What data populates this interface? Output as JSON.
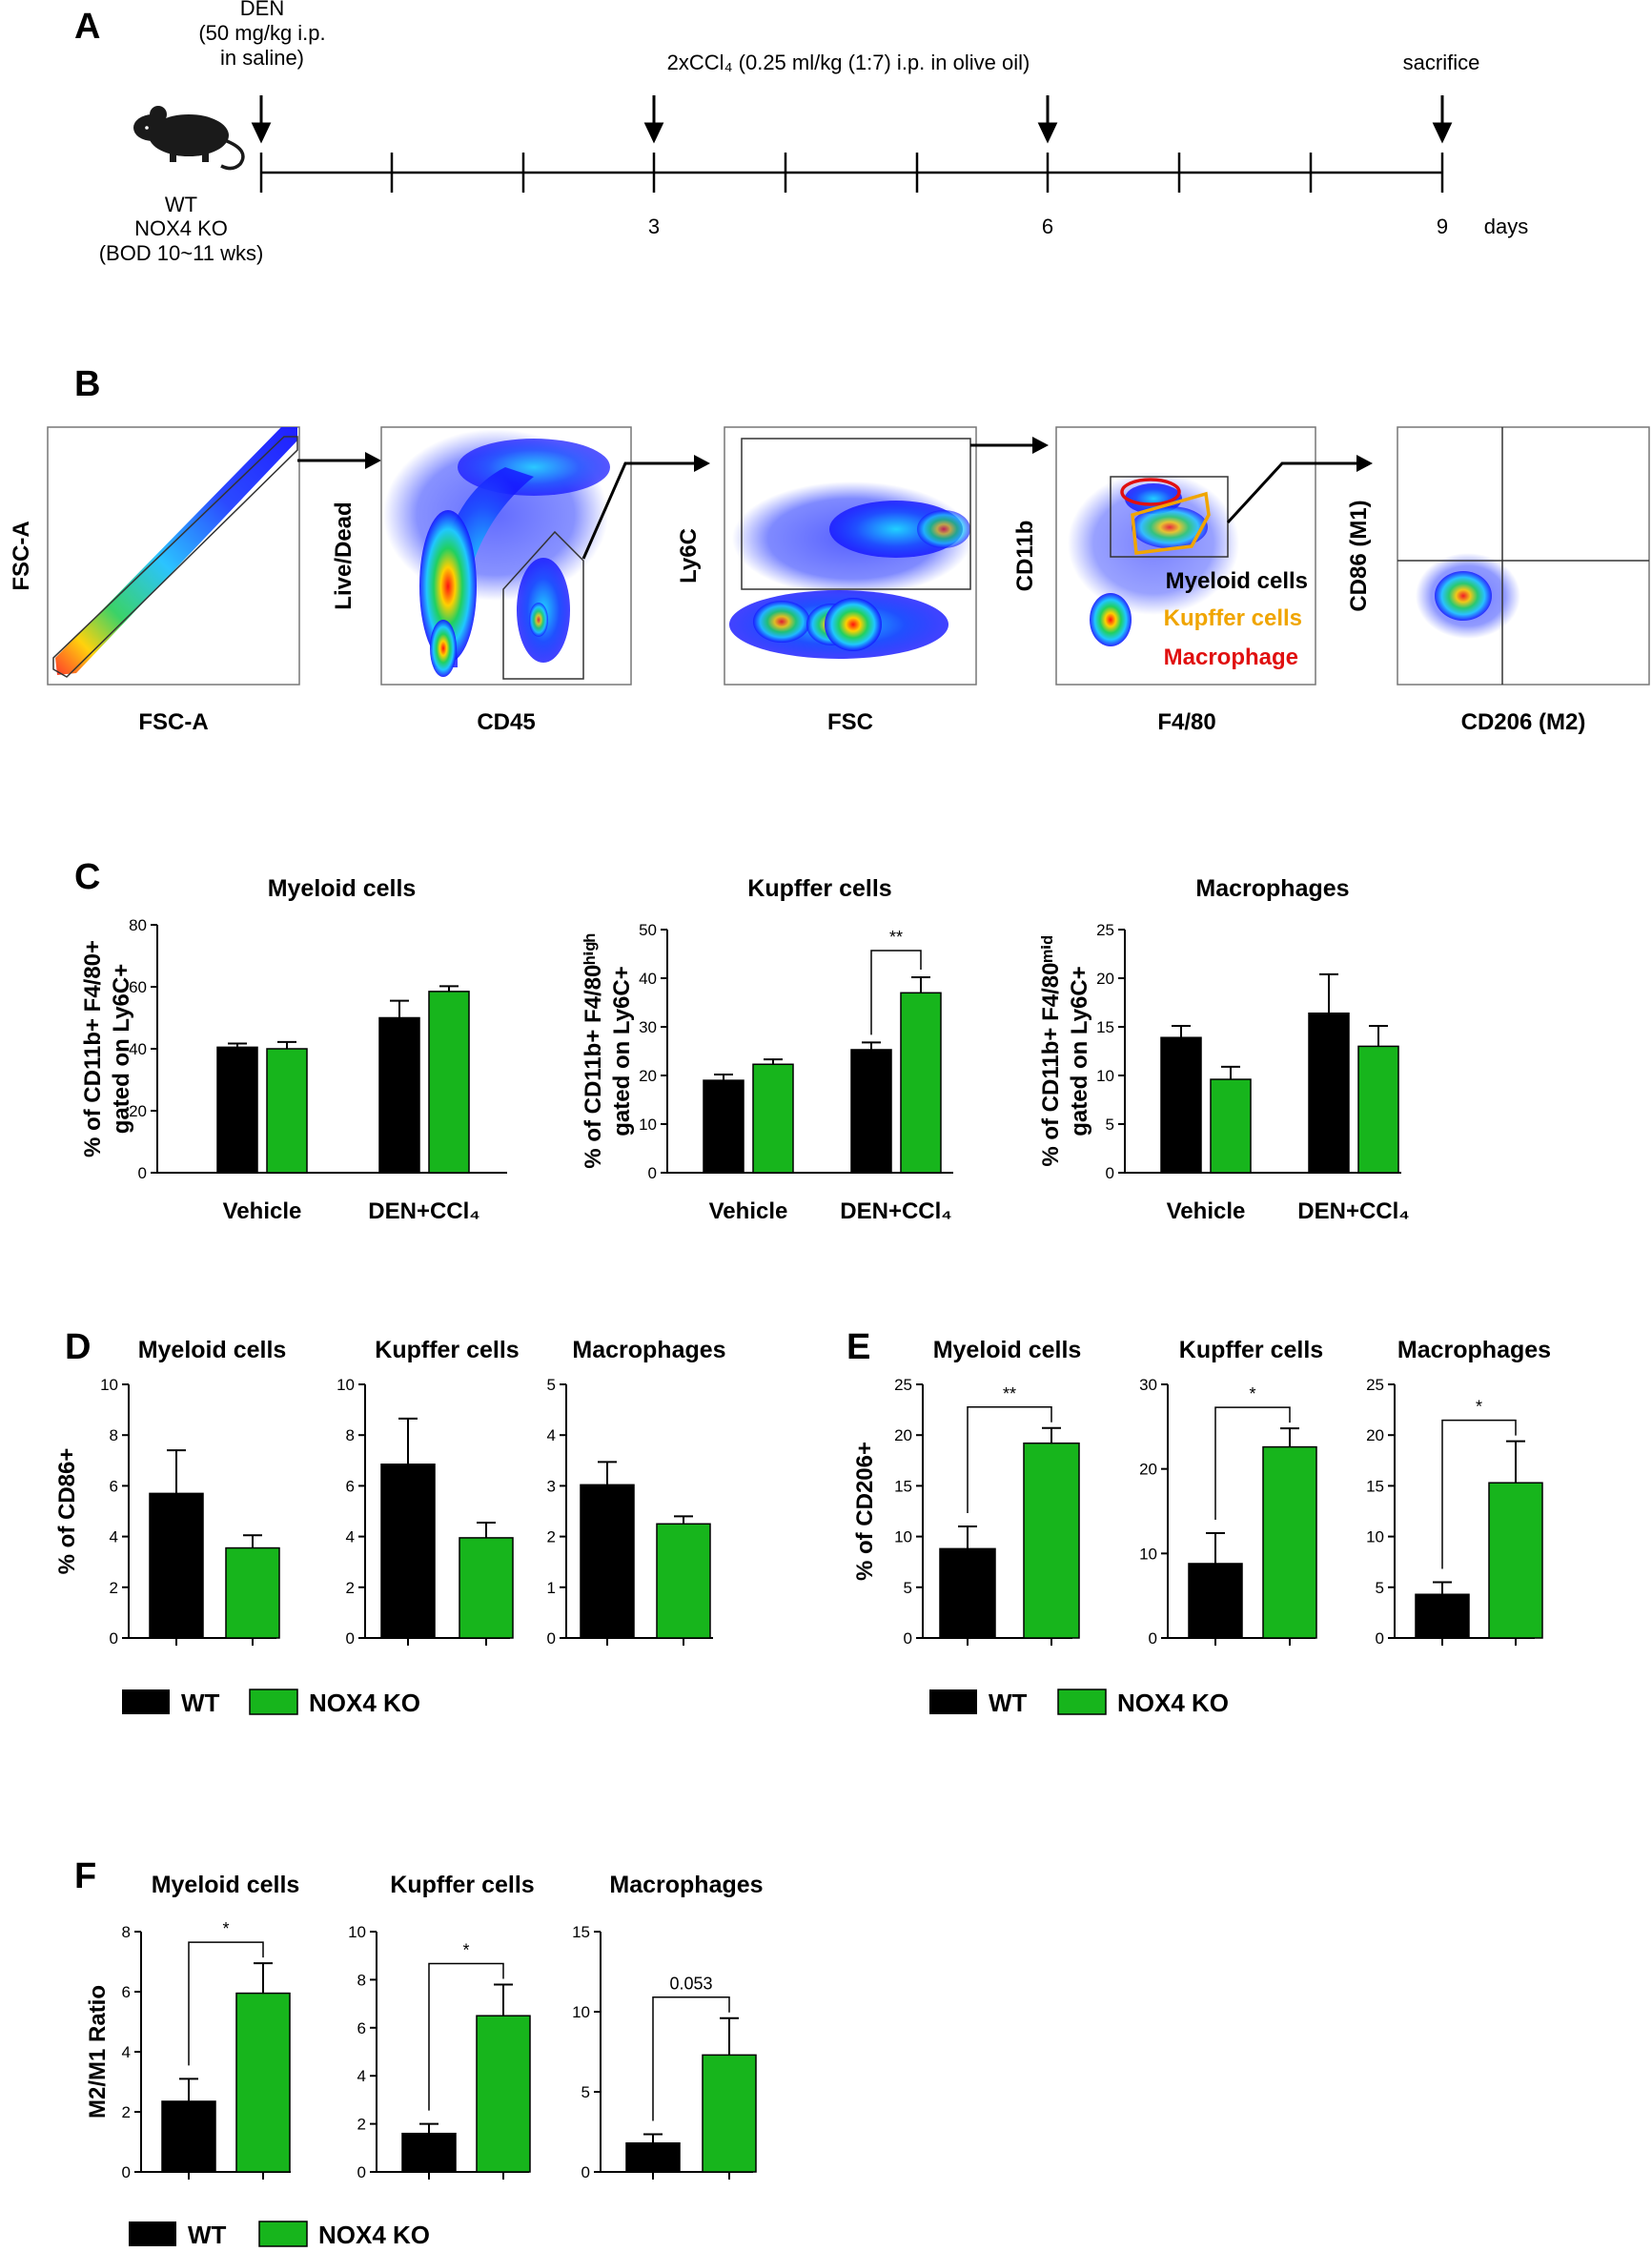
{
  "panels": {
    "A": "A",
    "B": "B",
    "C": "C",
    "D": "D",
    "E": "E",
    "F": "F"
  },
  "colors": {
    "wt": "#000000",
    "ko": "#17b51c",
    "kupffer": "#f0a500",
    "macrophage": "#e01010"
  },
  "timeline": {
    "den": [
      "DEN",
      "(50 mg/kg i.p.",
      "in saline)"
    ],
    "ccl4": "2xCCl₄ (0.25 ml/kg (1:7) i.p. in olive oil)",
    "sacrifice": "sacrifice",
    "mouse_labels": [
      "WT",
      "NOX4  KO",
      "(BOD 10~11 wks)"
    ],
    "day_ticks": [
      "3",
      "6",
      "9"
    ],
    "unit": "days"
  },
  "flow": {
    "plots": [
      {
        "y": "FSC-A",
        "x": "FSC-A"
      },
      {
        "y": "Live/Dead",
        "x": "CD45"
      },
      {
        "y": "Ly6C",
        "x": "FSC"
      },
      {
        "y": "CD11b",
        "x": "F4/80"
      },
      {
        "y": "CD86 (M1)",
        "x": "CD206 (M2)"
      }
    ],
    "gates": [
      "Myeloid cells",
      "Kupffer cells",
      "Macrophage"
    ]
  },
  "legend": {
    "wt": "WT",
    "ko": "NOX4 KO"
  },
  "chart_data": [
    {
      "id": "C1",
      "type": "bar",
      "title": "Myeloid cells",
      "ylabel": [
        "% of CD11b+ F4/80+",
        "gated on Ly6C+"
      ],
      "categories": [
        "Vehicle",
        "DEN+CCl₄"
      ],
      "ylim": [
        0,
        80
      ],
      "yticks": [
        "0",
        "20",
        "40",
        "60",
        "80"
      ],
      "series": [
        {
          "name": "WT",
          "values": [
            40.5,
            50
          ],
          "errors": [
            1.2,
            5.5
          ]
        },
        {
          "name": "NOX4 KO",
          "values": [
            40,
            58.5
          ],
          "errors": [
            2.2,
            1.7
          ]
        }
      ],
      "annotations": []
    },
    {
      "id": "C2",
      "type": "bar",
      "title": "Kupffer cells",
      "ylabel": [
        "% of CD11b+ F4/80ʰⁱᵍʰ",
        "gated on Ly6C+"
      ],
      "categories": [
        "Vehicle",
        "DEN+CCl₄"
      ],
      "ylim": [
        0,
        50
      ],
      "yticks": [
        "0",
        "10",
        "20",
        "30",
        "40",
        "50"
      ],
      "series": [
        {
          "name": "WT",
          "values": [
            19,
            25.3
          ],
          "errors": [
            1.2,
            1.5
          ]
        },
        {
          "name": "NOX4 KO",
          "values": [
            22.3,
            37
          ],
          "errors": [
            1.0,
            3.2
          ]
        }
      ],
      "annotations": [
        {
          "text": "**",
          "from": [
            1,
            0
          ],
          "to": [
            1,
            1
          ]
        }
      ]
    },
    {
      "id": "C3",
      "type": "bar",
      "title": "Macrophages",
      "ylabel": [
        "% of CD11b+ F4/80ᵐⁱᵈ",
        "gated on Ly6C+"
      ],
      "categories": [
        "Vehicle",
        "DEN+CCl₄"
      ],
      "ylim": [
        0,
        25
      ],
      "yticks": [
        "0",
        "5",
        "10",
        "15",
        "20",
        "25"
      ],
      "series": [
        {
          "name": "WT",
          "values": [
            13.9,
            16.4
          ],
          "errors": [
            1.2,
            4.0
          ]
        },
        {
          "name": "NOX4 KO",
          "values": [
            9.6,
            13
          ],
          "errors": [
            1.3,
            2.1
          ]
        }
      ],
      "annotations": []
    },
    {
      "id": "D1",
      "type": "bar",
      "title": "Myeloid cells",
      "ylabel": [
        "% of CD86+"
      ],
      "categories": [
        "WT",
        "NOX4 KO"
      ],
      "ylim": [
        0,
        10
      ],
      "yticks": [
        "0",
        "2",
        "4",
        "6",
        "8",
        "10"
      ],
      "values": [
        5.7,
        3.55
      ],
      "errors": [
        1.7,
        0.5
      ],
      "annotations": []
    },
    {
      "id": "D2",
      "type": "bar",
      "title": "Kupffer cells",
      "ylabel": [],
      "categories": [
        "WT",
        "NOX4 KO"
      ],
      "ylim": [
        0,
        10
      ],
      "yticks": [
        "0",
        "2",
        "4",
        "6",
        "8",
        "10"
      ],
      "values": [
        6.85,
        3.95
      ],
      "errors": [
        1.8,
        0.6
      ],
      "annotations": []
    },
    {
      "id": "D3",
      "type": "bar",
      "title": "Macrophages",
      "ylabel": [],
      "categories": [
        "WT",
        "NOX4 KO"
      ],
      "ylim": [
        0,
        5
      ],
      "yticks": [
        "0",
        "1",
        "2",
        "3",
        "4",
        "5"
      ],
      "values": [
        3.02,
        2.25
      ],
      "errors": [
        0.45,
        0.15
      ],
      "annotations": []
    },
    {
      "id": "E1",
      "type": "bar",
      "title": "Myeloid cells",
      "ylabel": [
        "% of CD206+"
      ],
      "categories": [
        "WT",
        "NOX4 KO"
      ],
      "ylim": [
        0,
        25
      ],
      "yticks": [
        "0",
        "5",
        "10",
        "15",
        "20",
        "25"
      ],
      "values": [
        8.8,
        19.2
      ],
      "errors": [
        2.2,
        1.5
      ],
      "annotations": [
        {
          "text": "**"
        }
      ]
    },
    {
      "id": "E2",
      "type": "bar",
      "title": "Kupffer cells",
      "ylabel": [],
      "categories": [
        "WT",
        "NOX4 KO"
      ],
      "ylim": [
        0,
        30
      ],
      "yticks": [
        "0",
        "10",
        "20",
        "30"
      ],
      "values": [
        8.8,
        22.6
      ],
      "errors": [
        3.6,
        2.2
      ],
      "annotations": [
        {
          "text": "*"
        }
      ]
    },
    {
      "id": "E3",
      "type": "bar",
      "title": "Macrophages",
      "ylabel": [],
      "categories": [
        "WT",
        "NOX4 KO"
      ],
      "ylim": [
        0,
        25
      ],
      "yticks": [
        "0",
        "5",
        "10",
        "15",
        "20",
        "25"
      ],
      "values": [
        4.3,
        15.3
      ],
      "errors": [
        1.2,
        4.1
      ],
      "annotations": [
        {
          "text": "*"
        }
      ]
    },
    {
      "id": "F1",
      "type": "bar",
      "title": "Myeloid cells",
      "ylabel": [
        "M2/M1 Ratio"
      ],
      "categories": [
        "WT",
        "NOX4 KO"
      ],
      "ylim": [
        0,
        8
      ],
      "yticks": [
        "0",
        "2",
        "4",
        "6",
        "8"
      ],
      "values": [
        2.35,
        5.95
      ],
      "errors": [
        0.75,
        1.0
      ],
      "annotations": [
        {
          "text": "*"
        }
      ]
    },
    {
      "id": "F2",
      "type": "bar",
      "title": "Kupffer cells",
      "ylabel": [],
      "categories": [
        "WT",
        "NOX4 KO"
      ],
      "ylim": [
        0,
        10
      ],
      "yticks": [
        "0",
        "2",
        "4",
        "6",
        "8",
        "10"
      ],
      "values": [
        1.6,
        6.5
      ],
      "errors": [
        0.4,
        1.3
      ],
      "annotations": [
        {
          "text": "*"
        }
      ]
    },
    {
      "id": "F3",
      "type": "bar",
      "title": "Macrophages",
      "ylabel": [],
      "categories": [
        "WT",
        "NOX4 KO"
      ],
      "ylim": [
        0,
        15
      ],
      "yticks": [
        "0",
        "5",
        "10",
        "15"
      ],
      "values": [
        1.8,
        7.3
      ],
      "errors": [
        0.55,
        2.3
      ],
      "annotations": [
        {
          "text": "0.053"
        }
      ]
    }
  ]
}
